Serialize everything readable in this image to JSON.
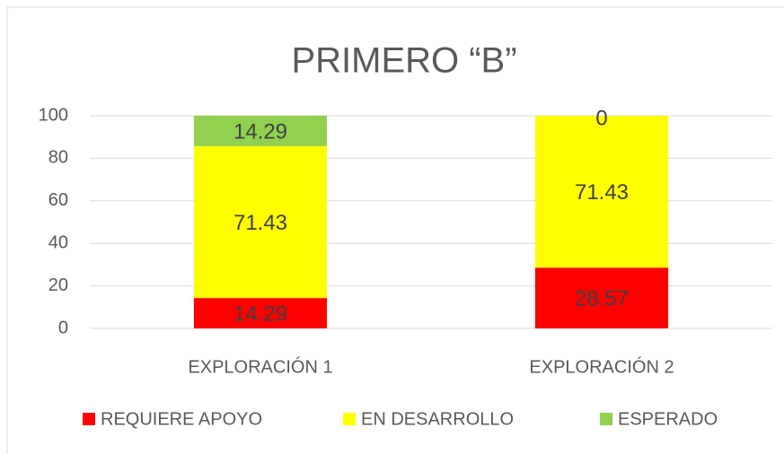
{
  "chart_data": {
    "type": "stacked_bar",
    "title": "PRIMERO “B”",
    "categories": [
      "EXPLORACIÓN 1",
      "EXPLORACIÓN 2"
    ],
    "series": [
      {
        "name": "REQUIERE APOYO",
        "color": "#ff0000",
        "values": [
          14.29,
          28.57
        ]
      },
      {
        "name": "EN DESARROLLO",
        "color": "#ffff00",
        "values": [
          71.43,
          71.43
        ]
      },
      {
        "name": "ESPERADO",
        "color": "#92d050",
        "values": [
          14.29,
          0
        ]
      }
    ],
    "ylim": [
      0,
      100
    ],
    "yticks": [
      0,
      20,
      40,
      60,
      80,
      100
    ],
    "grid": true,
    "legend": "bottom"
  }
}
